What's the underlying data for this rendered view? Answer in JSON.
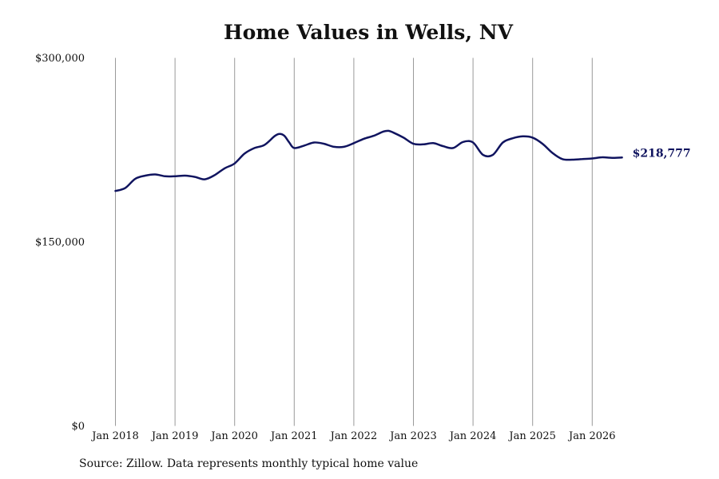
{
  "chart_data": {
    "type": "line",
    "title": "Home Values in Wells, NV",
    "source": "Source: Zillow. Data represents monthly typical home value",
    "xlabel": "",
    "ylabel": "",
    "ylim": [
      0,
      300000
    ],
    "y_ticks": [
      {
        "value": 0,
        "label": "$0"
      },
      {
        "value": 150000,
        "label": "$150,000"
      },
      {
        "value": 300000,
        "label": "$300,000"
      }
    ],
    "x_ticks": [
      {
        "date": "2018-01",
        "label": "Jan 2018"
      },
      {
        "date": "2019-01",
        "label": "Jan 2019"
      },
      {
        "date": "2020-01",
        "label": "Jan 2020"
      },
      {
        "date": "2021-01",
        "label": "Jan 2021"
      },
      {
        "date": "2022-01",
        "label": "Jan 2022"
      },
      {
        "date": "2023-01",
        "label": "Jan 2023"
      },
      {
        "date": "2024-01",
        "label": "Jan 2024"
      },
      {
        "date": "2025-01",
        "label": "Jan 2025"
      },
      {
        "date": "2026-01",
        "label": "Jan 2026"
      }
    ],
    "grid": "vertical",
    "line_color": "#10145f",
    "end_label": "$218,777",
    "series": [
      {
        "x": [
          "2018-01",
          "2018-03",
          "2018-05",
          "2018-07",
          "2018-09",
          "2018-11",
          "2019-01",
          "2019-03",
          "2019-05",
          "2019-07",
          "2019-09",
          "2019-11",
          "2020-01",
          "2020-03",
          "2020-05",
          "2020-07",
          "2020-09",
          "2020-10",
          "2020-11",
          "2020-12",
          "2021-01",
          "2021-03",
          "2021-05",
          "2021-07",
          "2021-09",
          "2021-11",
          "2022-01",
          "2022-03",
          "2022-05",
          "2022-07",
          "2022-08",
          "2022-09",
          "2022-11",
          "2023-01",
          "2023-03",
          "2023-05",
          "2023-07",
          "2023-09",
          "2023-11",
          "2024-01",
          "2024-03",
          "2024-05",
          "2024-07",
          "2024-09",
          "2024-11",
          "2025-01",
          "2025-03",
          "2025-05",
          "2025-07",
          "2025-09",
          "2025-11",
          "2026-01",
          "2026-03",
          "2026-05",
          "2026-07"
        ],
        "values": [
          191500,
          194000,
          201500,
          204000,
          205000,
          203500,
          203500,
          204000,
          203000,
          201000,
          204500,
          210000,
          214000,
          222000,
          226500,
          229000,
          236000,
          238000,
          236500,
          231000,
          226500,
          228500,
          231000,
          230000,
          227500,
          227500,
          230500,
          234000,
          236500,
          240000,
          240500,
          239000,
          235000,
          230000,
          229500,
          230500,
          228000,
          226500,
          231500,
          231000,
          221000,
          221000,
          231000,
          234500,
          236000,
          235000,
          230000,
          222500,
          217500,
          217000,
          217500,
          218000,
          219000,
          218500,
          218777
        ]
      }
    ]
  }
}
